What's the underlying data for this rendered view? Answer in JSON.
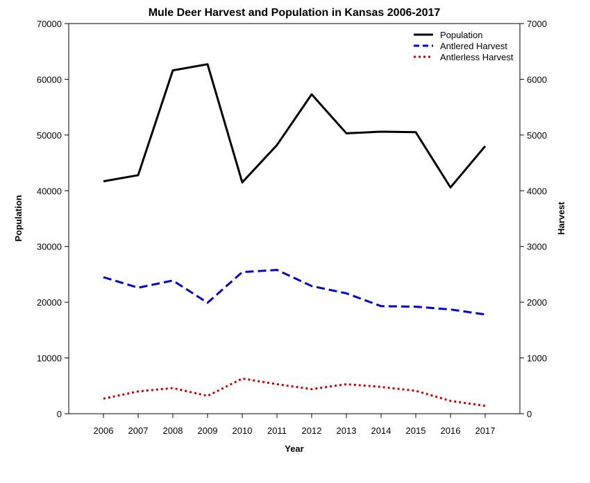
{
  "chart_data": {
    "type": "line",
    "title": "Mule Deer Harvest and Population in Kansas 2006-2017",
    "xlabel": "Year",
    "ylabel": "Population",
    "y2label": "Harvest",
    "categories": [
      "2006",
      "2007",
      "2008",
      "2009",
      "2010",
      "2011",
      "2012",
      "2013",
      "2014",
      "2015",
      "2016",
      "2017"
    ],
    "ylim": [
      0,
      70000
    ],
    "y2lim": [
      0,
      7000
    ],
    "yticks": [
      0,
      10000,
      20000,
      30000,
      40000,
      50000,
      60000,
      70000
    ],
    "y2ticks": [
      0,
      1000,
      2000,
      3000,
      4000,
      5000,
      6000,
      7000
    ],
    "grid": false,
    "legend_position": "top-right",
    "series": [
      {
        "name": "Population",
        "axis": "left",
        "color": "#000000",
        "dash": "solid",
        "values": [
          41700,
          42800,
          61600,
          62700,
          41500,
          48200,
          57300,
          50300,
          50600,
          50500,
          40600,
          48000
        ]
      },
      {
        "name": "Antlered Harvest",
        "axis": "right",
        "color": "#0000cc",
        "dash": "dashed",
        "values": [
          2450,
          2260,
          2390,
          1990,
          2540,
          2580,
          2290,
          2160,
          1930,
          1920,
          1870,
          1780
        ]
      },
      {
        "name": "Antlerless Harvest",
        "axis": "right",
        "color": "#cc0000",
        "dash": "dotted",
        "values": [
          270,
          400,
          460,
          320,
          630,
          530,
          440,
          530,
          480,
          410,
          230,
          140
        ]
      }
    ]
  }
}
